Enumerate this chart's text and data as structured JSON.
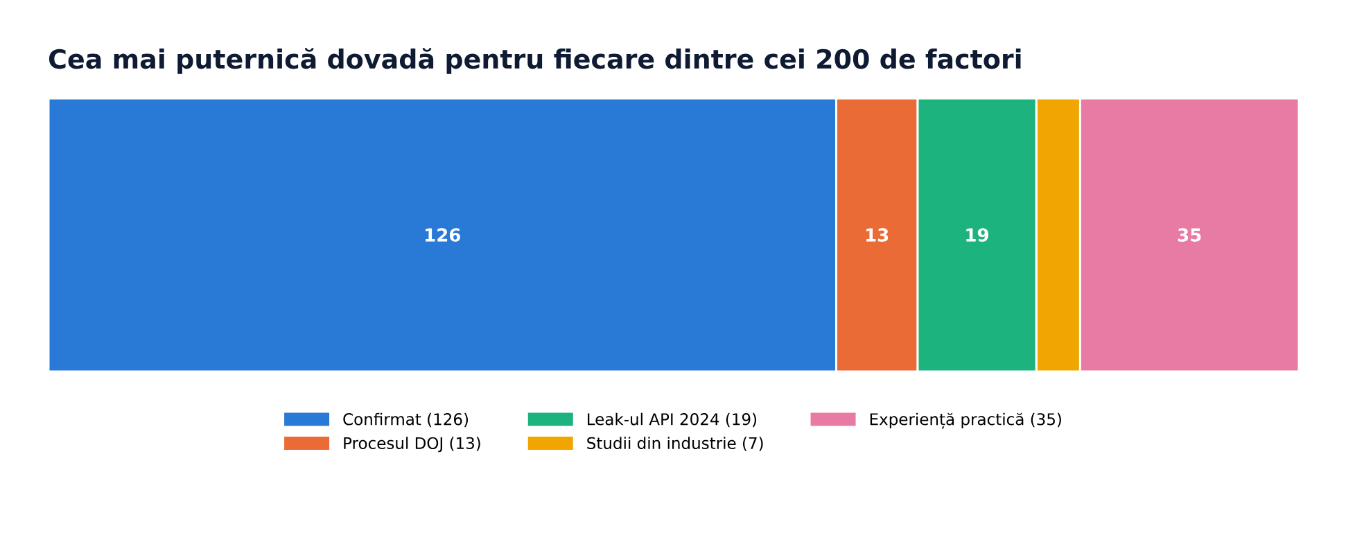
{
  "chart_data": {
    "type": "bar",
    "orientation": "horizontal",
    "stacked": true,
    "title": "Cea mai puternică dovadă pentru fiecare dintre cei 200 de factori",
    "categories": [
      null
    ],
    "xlim": [
      0,
      200
    ],
    "legend": "bottom",
    "series": [
      {
        "name": "Confirmat (126)",
        "color": "#2979d6",
        "values": [
          126
        ],
        "value_labels": [
          "126"
        ]
      },
      {
        "name": "Procesul DOJ (13)",
        "color": "#ea6b35",
        "values": [
          13
        ],
        "value_labels": [
          "13"
        ]
      },
      {
        "name": "Leak-ul API 2024 (19)",
        "color": "#1db37e",
        "values": [
          19
        ],
        "value_labels": [
          "19"
        ]
      },
      {
        "name": "Studii din industrie (7)",
        "color": "#f0a500",
        "values": [
          7
        ],
        "value_labels": [
          null
        ]
      },
      {
        "name": "Experiență practică (35)",
        "color": "#e87ba3",
        "values": [
          35
        ],
        "value_labels": [
          "35"
        ]
      }
    ]
  }
}
